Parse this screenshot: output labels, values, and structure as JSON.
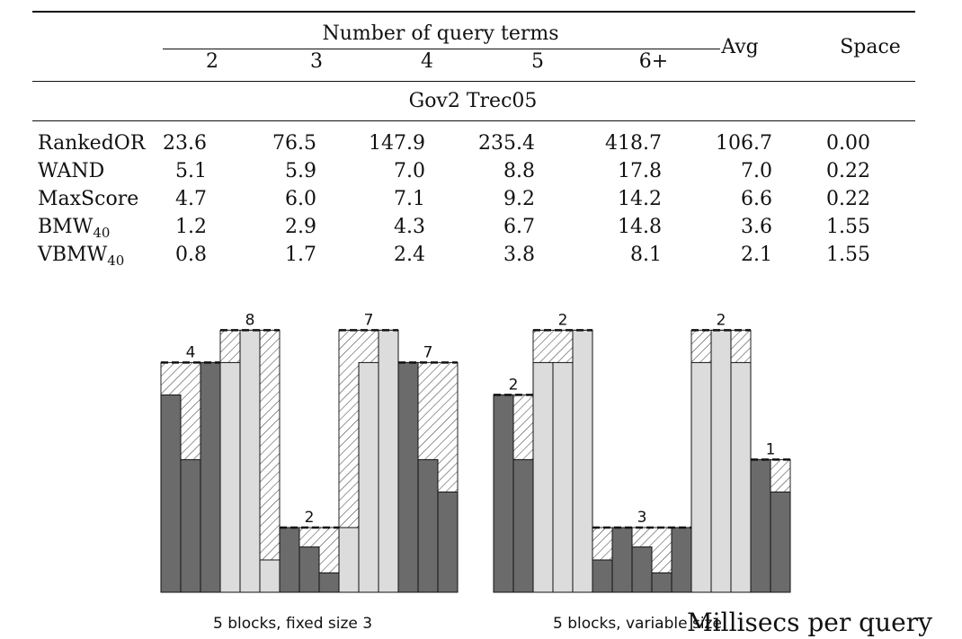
{
  "table": {
    "group_header": "Number of query terms",
    "terms": [
      "2",
      "3",
      "4",
      "5",
      "6+"
    ],
    "avg_label": "Avg",
    "space_label": "Space",
    "section": "Gov2 Trec05",
    "rows": [
      {
        "name": "RankedOR",
        "sub": "",
        "values": [
          "23.6",
          "76.5",
          "147.9",
          "235.4",
          "418.7"
        ],
        "avg": "106.7",
        "space": "0.00"
      },
      {
        "name": "WAND",
        "sub": "",
        "values": [
          "5.1",
          "5.9",
          "7.0",
          "8.8",
          "17.8"
        ],
        "avg": "7.0",
        "space": "0.22"
      },
      {
        "name": "MaxScore",
        "sub": "",
        "values": [
          "4.7",
          "6.0",
          "7.1",
          "9.2",
          "14.2"
        ],
        "avg": "6.6",
        "space": "0.22"
      },
      {
        "name": "BMW",
        "sub": "40",
        "values": [
          "1.2",
          "2.9",
          "4.3",
          "6.7",
          "14.8"
        ],
        "avg": "3.6",
        "space": "1.55"
      },
      {
        "name": "VBMW",
        "sub": "40",
        "values": [
          "0.8",
          "1.7",
          "2.4",
          "3.8",
          "8.1"
        ],
        "avg": "2.1",
        "space": "1.55"
      }
    ]
  },
  "figure": {
    "colors": {
      "dark": "#6b6b6b",
      "light": "#dcdcdc",
      "hatch": "#333333"
    },
    "panels": [
      {
        "caption": "5 blocks, fixed size 3",
        "bars": [
          {
            "value": 6.1,
            "shade": "dark"
          },
          {
            "value": 4.1,
            "shade": "dark"
          },
          {
            "value": 7.1,
            "shade": "dark"
          },
          {
            "value": 7.1,
            "shade": "light"
          },
          {
            "value": 8.1,
            "shade": "light"
          },
          {
            "value": 1.0,
            "shade": "light"
          },
          {
            "value": 2.0,
            "shade": "dark"
          },
          {
            "value": 1.4,
            "shade": "dark"
          },
          {
            "value": 0.6,
            "shade": "dark"
          },
          {
            "value": 2.0,
            "shade": "light"
          },
          {
            "value": 7.1,
            "shade": "light"
          },
          {
            "value": 8.1,
            "shade": "light"
          },
          {
            "value": 7.1,
            "shade": "dark"
          },
          {
            "value": 4.1,
            "shade": "dark"
          },
          {
            "value": 3.1,
            "shade": "dark"
          }
        ],
        "blocks": [
          {
            "start": 0,
            "end": 3,
            "max": 7.1,
            "label": "4"
          },
          {
            "start": 3,
            "end": 6,
            "max": 8.1,
            "label": "8"
          },
          {
            "start": 6,
            "end": 9,
            "max": 2.0,
            "label": "2"
          },
          {
            "start": 9,
            "end": 12,
            "max": 8.1,
            "label": "7"
          },
          {
            "start": 12,
            "end": 15,
            "max": 7.1,
            "label": "7"
          }
        ]
      },
      {
        "caption": "5 blocks, variable size",
        "bars": [
          {
            "value": 6.1,
            "shade": "dark"
          },
          {
            "value": 4.1,
            "shade": "dark"
          },
          {
            "value": 7.1,
            "shade": "light"
          },
          {
            "value": 7.1,
            "shade": "light"
          },
          {
            "value": 8.1,
            "shade": "light"
          },
          {
            "value": 1.0,
            "shade": "dark"
          },
          {
            "value": 2.0,
            "shade": "dark"
          },
          {
            "value": 1.4,
            "shade": "dark"
          },
          {
            "value": 0.6,
            "shade": "dark"
          },
          {
            "value": 2.0,
            "shade": "dark"
          },
          {
            "value": 7.1,
            "shade": "light"
          },
          {
            "value": 8.1,
            "shade": "light"
          },
          {
            "value": 7.1,
            "shade": "light"
          },
          {
            "value": 4.1,
            "shade": "dark"
          },
          {
            "value": 3.1,
            "shade": "dark"
          }
        ],
        "blocks": [
          {
            "start": 0,
            "end": 2,
            "max": 6.1,
            "label": "2"
          },
          {
            "start": 2,
            "end": 5,
            "max": 8.1,
            "label": "2"
          },
          {
            "start": 5,
            "end": 10,
            "max": 2.0,
            "label": "3"
          },
          {
            "start": 10,
            "end": 13,
            "max": 8.1,
            "label": "2"
          },
          {
            "start": 13,
            "end": 15,
            "max": 4.1,
            "label": "1"
          }
        ]
      }
    ]
  },
  "overlay_caption": "Millisecs per query"
}
